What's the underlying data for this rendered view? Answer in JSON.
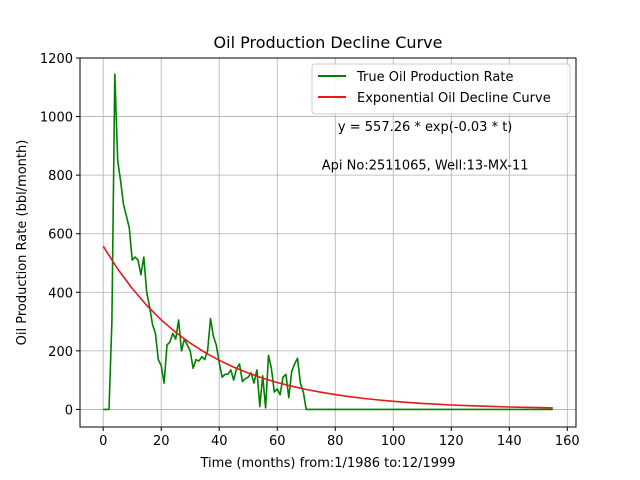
{
  "chart_data": {
    "type": "line",
    "title": "Oil Production Decline Curve",
    "xlabel": "Time (months) from:1/1986 to:12/1999",
    "ylabel": "Oil Production Rate (bbl/month)",
    "xlim": [
      -8,
      163
    ],
    "ylim": [
      -60,
      1200
    ],
    "xticks": [
      0,
      20,
      40,
      60,
      80,
      100,
      120,
      140,
      160
    ],
    "yticks": [
      0,
      200,
      400,
      600,
      800,
      1000,
      1200
    ],
    "grid": true,
    "legend_position": "top-right",
    "annotations": [
      {
        "text": "y = 557.26 * exp(-0.03 * t)",
        "x": 111,
        "y": 950
      },
      {
        "text": "Api No:2511065, Well:13-MX-11",
        "x": 111,
        "y": 820
      }
    ],
    "series": [
      {
        "name": "True Oil Production Rate",
        "color": "#008000",
        "x": [
          0,
          1,
          2,
          3,
          4,
          5,
          6,
          7,
          8,
          9,
          10,
          11,
          12,
          13,
          14,
          15,
          16,
          17,
          18,
          19,
          20,
          21,
          22,
          23,
          24,
          25,
          26,
          27,
          28,
          29,
          30,
          31,
          32,
          33,
          34,
          35,
          36,
          37,
          38,
          39,
          40,
          41,
          42,
          43,
          44,
          45,
          46,
          47,
          48,
          49,
          50,
          51,
          52,
          53,
          54,
          55,
          56,
          57,
          58,
          59,
          60,
          61,
          62,
          63,
          64,
          65,
          66,
          67,
          68,
          69,
          70,
          71,
          72,
          73,
          80,
          90,
          100,
          110,
          120,
          130,
          140,
          150,
          155
        ],
        "y": [
          0,
          0,
          0,
          300,
          1145,
          850,
          780,
          700,
          660,
          620,
          510,
          520,
          510,
          460,
          520,
          400,
          350,
          290,
          260,
          170,
          150,
          90,
          220,
          230,
          260,
          240,
          305,
          200,
          240,
          220,
          200,
          140,
          170,
          165,
          180,
          170,
          200,
          310,
          250,
          220,
          160,
          110,
          120,
          120,
          135,
          100,
          140,
          155,
          95,
          105,
          110,
          125,
          90,
          135,
          10,
          115,
          5,
          185,
          140,
          60,
          70,
          50,
          110,
          120,
          40,
          130,
          155,
          175,
          90,
          60,
          0,
          0,
          0,
          0,
          0,
          0,
          0,
          0,
          0,
          0,
          0,
          0,
          0
        ]
      },
      {
        "name": "Exponential Oil Decline Curve",
        "color": "#e31a1c",
        "x": [
          0,
          5,
          10,
          15,
          20,
          25,
          30,
          35,
          40,
          45,
          50,
          55,
          60,
          65,
          70,
          75,
          80,
          85,
          90,
          95,
          100,
          105,
          110,
          115,
          120,
          125,
          130,
          135,
          140,
          145,
          150,
          155
        ],
        "y": [
          557.26,
          479.6,
          412.8,
          355.3,
          305.8,
          263.2,
          226.5,
          195.0,
          167.8,
          144.4,
          124.3,
          107.0,
          92.1,
          79.2,
          68.2,
          58.7,
          50.5,
          43.5,
          37.4,
          32.2,
          27.7,
          23.9,
          20.5,
          17.7,
          15.2,
          13.1,
          11.3,
          9.7,
          8.3,
          7.2,
          6.2,
          5.3
        ]
      }
    ]
  }
}
